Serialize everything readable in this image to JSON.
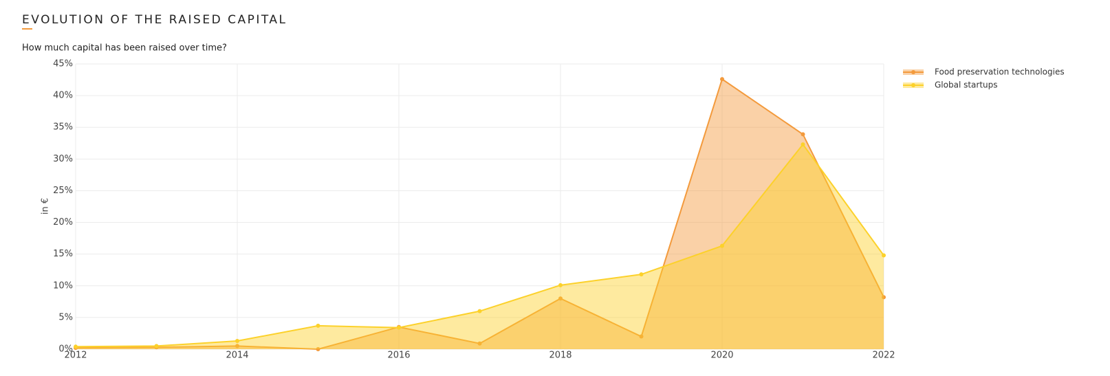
{
  "chart_data": {
    "type": "area",
    "title": "EVOLUTION OF THE RAISED CAPITAL",
    "subtitle": "How much capital has been raised over time?",
    "y_label": "in €",
    "x": [
      2012,
      2013,
      2014,
      2015,
      2016,
      2017,
      2018,
      2019,
      2020,
      2021,
      2022
    ],
    "series": [
      {
        "name": "Food preservation technologies",
        "color": "#f39a3c",
        "values": [
          0.2,
          0.3,
          0.5,
          0,
          3.5,
          0.9,
          8,
          2,
          42.6,
          33.9,
          8.2
        ]
      },
      {
        "name": "Global startups",
        "color": "#fcd12a",
        "values": [
          0.4,
          0.5,
          1.3,
          3.7,
          3.4,
          6,
          10.1,
          11.8,
          16.3,
          32.3,
          14.8
        ]
      }
    ],
    "xlim": [
      2012,
      2022
    ],
    "xticks": [
      2012,
      2014,
      2016,
      2018,
      2020,
      2022
    ],
    "ylim": [
      0,
      45
    ],
    "yticks": [
      {
        "value": 0,
        "label": "0%"
      },
      {
        "value": 5,
        "label": "5%"
      },
      {
        "value": 10,
        "label": "10%"
      },
      {
        "value": 15,
        "label": "15%"
      },
      {
        "value": 20,
        "label": "20%"
      },
      {
        "value": 25,
        "label": "25%"
      },
      {
        "value": 30,
        "label": "30%"
      },
      {
        "value": 35,
        "label": "35%"
      },
      {
        "value": 40,
        "label": "40%"
      },
      {
        "value": 45,
        "label": "45%"
      }
    ],
    "grid": true,
    "legend": "top-right"
  }
}
